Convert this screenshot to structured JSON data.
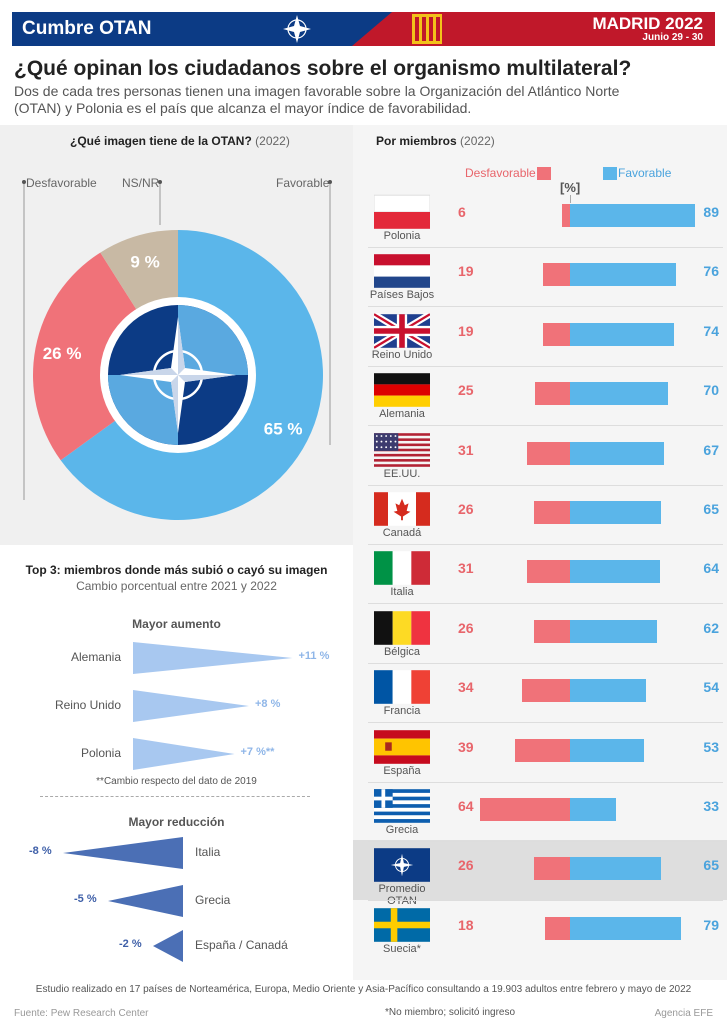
{
  "header": {
    "title": "Cumbre OTAN",
    "city": "MADRID 2022",
    "dates": "Junio 29 - 30",
    "colors": {
      "blue": "#0c3b85",
      "red": "#c0182a",
      "yellow": "#f3c21a"
    }
  },
  "title": "¿Qué opinan los ciudadanos sobre el organismo multilateral?",
  "subtitle": "Dos de cada tres personas tienen una imagen favorable sobre la Organización del Atlántico Norte (OTAN) y Polonia es el país que alcanza el mayor índice de favorabilidad.",
  "chart_data": [
    {
      "type": "pie",
      "title": "¿Qué imagen tiene de la OTAN?",
      "title_note": "(2022)",
      "labels": [
        "Favorable",
        "Desfavorable",
        "NS/NR"
      ],
      "values": [
        65,
        26,
        9
      ],
      "value_labels": [
        "65 %",
        "26 %",
        "9 %"
      ],
      "colors": [
        "#5bb6ea",
        "#f07279",
        "#c8b9a4"
      ]
    },
    {
      "type": "bar",
      "title": "Por miembros",
      "title_note": "(2022)",
      "unit_label": "[%]",
      "legend": {
        "neg": "Desfavorable",
        "pos": "Favorable"
      },
      "colors": {
        "neg": "#f07279",
        "pos": "#5bb6ea"
      },
      "categories": [
        "Polonia",
        "Países Bajos",
        "Reino Unido",
        "Alemania",
        "EE.UU.",
        "Canadá",
        "Italia",
        "Bélgica",
        "Francia",
        "España",
        "Grecia",
        "Promedio OTAN",
        "Suecia*"
      ],
      "series": [
        {
          "name": "Desfavorable",
          "values": [
            6,
            19,
            19,
            25,
            31,
            26,
            31,
            26,
            34,
            39,
            64,
            26,
            18
          ]
        },
        {
          "name": "Favorable",
          "values": [
            89,
            76,
            74,
            70,
            67,
            65,
            64,
            62,
            54,
            53,
            33,
            65,
            79
          ]
        }
      ]
    },
    {
      "type": "bar",
      "title": "Top 3: miembros donde más subió o cayó su imagen",
      "subtitle": "Cambio porcentual entre 2021 y 2022",
      "groups": [
        {
          "name": "Mayor aumento",
          "categories": [
            "Alemania",
            "Reino Unido",
            "Polonia"
          ],
          "values": [
            11,
            8,
            7
          ],
          "value_labels": [
            "+11 %",
            "+8 %",
            "+7 %**"
          ],
          "color": "#a8c8f0"
        },
        {
          "name": "Mayor reducción",
          "categories": [
            "Italia",
            "Grecia",
            "España / Canadá"
          ],
          "values": [
            -8,
            -5,
            -2
          ],
          "value_labels": [
            "-8 %",
            "-5 %",
            "-2 %"
          ],
          "color": "#4b6fb5"
        }
      ],
      "note": "**Cambio respecto del dato de 2019"
    }
  ],
  "footer": {
    "study": "Estudio realizado en 17 países de Norteamérica, Europa, Medio Oriente y Asia-Pacífico consultando a 19.903 adultos entre febrero y mayo de 2022",
    "source": "Fuente: Pew Research Center",
    "no_member": "*No miembro; solicitó ingreso",
    "agency": "Agencia EFE"
  }
}
